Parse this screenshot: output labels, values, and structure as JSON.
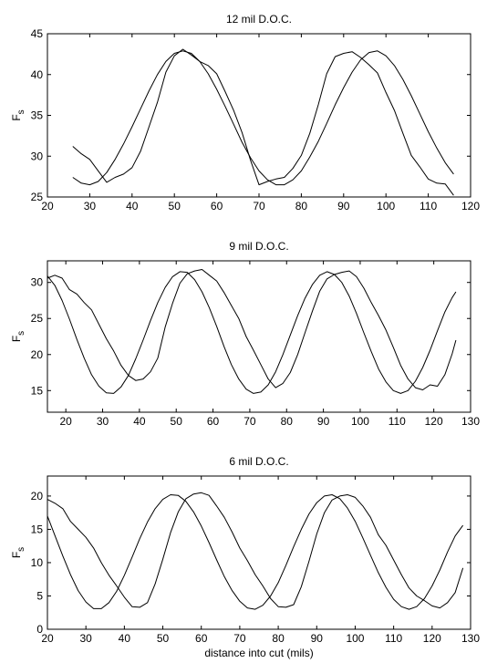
{
  "chart_data": [
    {
      "type": "line",
      "title": "12 mil D.O.C.",
      "ylabel": "F_s",
      "xlabel": "",
      "xlim": [
        20,
        120
      ],
      "ylim": [
        25,
        45
      ],
      "xticks": [
        20,
        30,
        40,
        50,
        60,
        70,
        80,
        90,
        100,
        110,
        120
      ],
      "yticks": [
        25,
        30,
        35,
        40,
        45
      ],
      "series": [
        {
          "x": [
            26,
            28,
            30,
            32,
            34,
            36,
            38,
            40,
            42,
            44,
            46,
            48,
            50,
            52,
            54,
            56,
            58,
            60,
            62,
            64,
            66,
            68,
            70,
            72,
            74,
            76,
            78,
            80,
            82,
            84,
            86,
            88,
            90,
            92,
            94,
            96,
            98,
            100,
            102,
            104,
            106,
            108,
            110,
            112,
            114,
            116
          ],
          "y": [
            31.2,
            30.3,
            29.6,
            28.2,
            26.8,
            27.4,
            27.8,
            28.6,
            30.6,
            33.6,
            36.6,
            40.3,
            42.3,
            43.1,
            42.4,
            41.6,
            41.1,
            40.1,
            37.9,
            35.6,
            32.9,
            29.5,
            26.5,
            26.9,
            27.2,
            27.4,
            28.5,
            30.1,
            32.8,
            36.3,
            40.1,
            42.2,
            42.6,
            42.8,
            42.1,
            41.2,
            40.2,
            37.8,
            35.6,
            32.8,
            30.1,
            28.7,
            27.2,
            26.7,
            26.6,
            25.2
          ]
        },
        {
          "x": [
            26,
            28,
            30,
            32,
            34,
            36,
            38,
            40,
            42,
            44,
            46,
            48,
            50,
            52,
            54,
            56,
            58,
            60,
            62,
            64,
            66,
            68,
            70,
            72,
            74,
            76,
            78,
            80,
            82,
            84,
            86,
            88,
            90,
            92,
            94,
            96,
            98,
            100,
            102,
            104,
            106,
            108,
            110,
            112,
            114,
            116
          ],
          "y": [
            27.4,
            26.7,
            26.5,
            26.9,
            28.0,
            29.6,
            31.5,
            33.6,
            35.8,
            38.0,
            40.0,
            41.6,
            42.6,
            42.9,
            42.6,
            41.6,
            40.1,
            38.2,
            36.1,
            33.9,
            31.7,
            29.8,
            28.2,
            27.1,
            26.5,
            26.5,
            27.1,
            28.2,
            29.9,
            31.8,
            34.0,
            36.3,
            38.4,
            40.3,
            41.8,
            42.7,
            42.9,
            42.3,
            41.1,
            39.4,
            37.4,
            35.2,
            33.0,
            31.0,
            29.2,
            27.8
          ]
        }
      ]
    },
    {
      "type": "line",
      "title": "9 mil D.O.C.",
      "ylabel": "F_s",
      "xlabel": "",
      "xlim": [
        15,
        130
      ],
      "ylim": [
        12,
        33
      ],
      "xticks": [
        20,
        30,
        40,
        50,
        60,
        70,
        80,
        90,
        100,
        110,
        120,
        130
      ],
      "yticks": [
        15,
        20,
        25,
        30
      ],
      "series": [
        {
          "x": [
            15,
            17,
            19,
            21,
            23,
            25,
            27,
            29,
            31,
            33,
            35,
            37,
            39,
            41,
            43,
            45,
            47,
            49,
            51,
            53,
            55,
            57,
            59,
            61,
            63,
            65,
            67,
            69,
            71,
            73,
            75,
            77,
            79,
            81,
            83,
            85,
            87,
            89,
            91,
            93,
            95,
            97,
            99,
            101,
            103,
            105,
            107,
            109,
            111,
            113,
            115,
            117,
            119,
            121,
            123,
            125,
            126
          ],
          "y": [
            30.6,
            31.0,
            30.6,
            29.0,
            28.4,
            27.2,
            26.2,
            24.2,
            22.2,
            20.5,
            18.5,
            17.1,
            16.4,
            16.6,
            17.6,
            19.5,
            23.8,
            27.1,
            29.9,
            31.2,
            31.6,
            31.8,
            31.0,
            30.2,
            28.6,
            26.8,
            25.0,
            22.5,
            20.6,
            18.6,
            16.6,
            15.4,
            16.0,
            17.5,
            20.0,
            23.0,
            26.0,
            28.8,
            30.5,
            31.1,
            31.4,
            31.6,
            30.8,
            29.2,
            27.2,
            25.4,
            23.4,
            21.0,
            18.5,
            16.6,
            15.4,
            15.1,
            15.8,
            15.6,
            17.2,
            20.1,
            22.0
          ]
        },
        {
          "x": [
            15,
            17,
            19,
            21,
            23,
            25,
            27,
            29,
            31,
            33,
            35,
            37,
            39,
            41,
            43,
            45,
            47,
            49,
            51,
            53,
            55,
            57,
            59,
            61,
            63,
            65,
            67,
            69,
            71,
            73,
            75,
            77,
            79,
            81,
            83,
            85,
            87,
            89,
            91,
            93,
            95,
            97,
            99,
            101,
            103,
            105,
            107,
            109,
            111,
            113,
            115,
            117,
            119,
            121,
            123,
            125,
            126
          ],
          "y": [
            30.9,
            29.6,
            27.5,
            24.9,
            22.1,
            19.5,
            17.2,
            15.6,
            14.7,
            14.6,
            15.5,
            17.1,
            19.4,
            22.0,
            24.7,
            27.2,
            29.3,
            30.8,
            31.5,
            31.4,
            30.4,
            28.7,
            26.5,
            23.9,
            21.1,
            18.6,
            16.6,
            15.2,
            14.6,
            14.8,
            15.8,
            17.6,
            20.0,
            22.7,
            25.4,
            27.8,
            29.7,
            31.0,
            31.5,
            31.1,
            30.0,
            28.1,
            25.7,
            23.0,
            20.4,
            18.0,
            16.2,
            15.0,
            14.6,
            15.0,
            16.3,
            18.2,
            20.6,
            23.3,
            25.9,
            27.9,
            28.7
          ]
        }
      ]
    },
    {
      "type": "line",
      "title": "6 mil D.O.C.",
      "ylabel": "F_s",
      "xlabel": "distance into cut (mils)",
      "xlim": [
        20,
        130
      ],
      "ylim": [
        0,
        23
      ],
      "xticks": [
        20,
        30,
        40,
        50,
        60,
        70,
        80,
        90,
        100,
        110,
        120,
        130
      ],
      "yticks": [
        0,
        5,
        10,
        15,
        20
      ],
      "series": [
        {
          "x": [
            20,
            22,
            24,
            26,
            28,
            30,
            32,
            34,
            36,
            38,
            40,
            42,
            44,
            46,
            48,
            50,
            52,
            54,
            56,
            58,
            60,
            62,
            64,
            66,
            68,
            70,
            72,
            74,
            76,
            78,
            80,
            82,
            84,
            86,
            88,
            90,
            92,
            94,
            96,
            98,
            100,
            102,
            104,
            106,
            108,
            110,
            112,
            114,
            116,
            118,
            120,
            122,
            124,
            126,
            128
          ],
          "y": [
            19.5,
            18.9,
            18.1,
            16.2,
            15.0,
            13.8,
            12.2,
            10.0,
            8.1,
            6.5,
            4.8,
            3.4,
            3.3,
            4.0,
            6.8,
            10.5,
            14.5,
            17.6,
            19.6,
            20.3,
            20.5,
            20.1,
            18.5,
            16.8,
            14.6,
            12.2,
            10.3,
            8.2,
            6.5,
            4.6,
            3.4,
            3.3,
            3.7,
            6.4,
            10.2,
            14.3,
            17.5,
            19.4,
            20.0,
            20.2,
            19.8,
            18.5,
            16.8,
            14.2,
            12.6,
            10.4,
            8.2,
            6.2,
            5.0,
            4.3,
            3.5,
            3.2,
            4.0,
            5.5,
            9.2
          ]
        },
        {
          "x": [
            20,
            22,
            24,
            26,
            28,
            30,
            32,
            34,
            36,
            38,
            40,
            42,
            44,
            46,
            48,
            50,
            52,
            54,
            56,
            58,
            60,
            62,
            64,
            66,
            68,
            70,
            72,
            74,
            76,
            78,
            80,
            82,
            84,
            86,
            88,
            90,
            92,
            94,
            96,
            98,
            100,
            102,
            104,
            106,
            108,
            110,
            112,
            114,
            116,
            118,
            120,
            122,
            124,
            126,
            128
          ],
          "y": [
            17.0,
            14.0,
            11.0,
            8.2,
            5.8,
            4.1,
            3.1,
            3.1,
            4.0,
            5.7,
            8.1,
            10.8,
            13.6,
            16.1,
            18.1,
            19.5,
            20.2,
            20.1,
            19.2,
            17.6,
            15.5,
            13.0,
            10.4,
            7.9,
            5.8,
            4.2,
            3.2,
            3.0,
            3.6,
            5.0,
            7.0,
            9.6,
            12.4,
            15.0,
            17.3,
            19.0,
            20.0,
            20.2,
            19.6,
            18.2,
            16.2,
            13.7,
            11.1,
            8.5,
            6.3,
            4.5,
            3.4,
            3.0,
            3.4,
            4.6,
            6.5,
            8.9,
            11.6,
            14.0,
            15.6
          ]
        }
      ]
    }
  ]
}
